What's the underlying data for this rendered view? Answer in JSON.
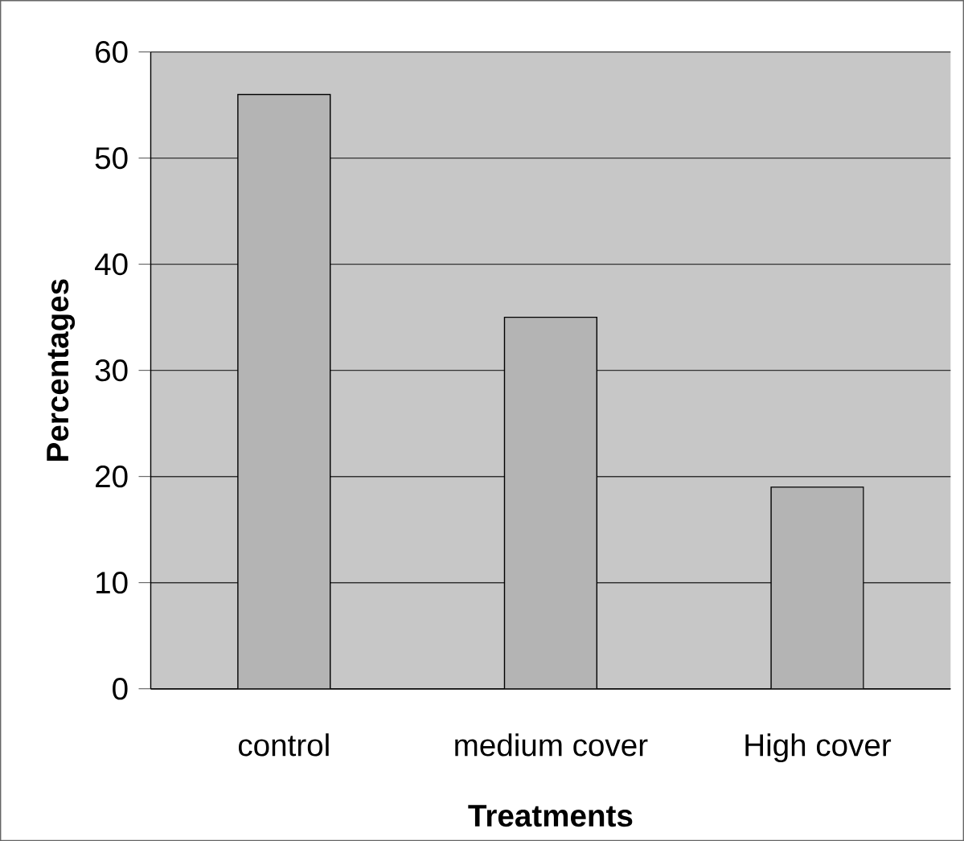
{
  "chart_data": {
    "type": "bar",
    "xlabel": "Treatments",
    "ylabel": "Percentages",
    "categories": [
      "control",
      "medium cover",
      "High cover"
    ],
    "values": [
      56,
      35,
      19
    ],
    "color": "#b4b4b4",
    "ylim": [
      0,
      60
    ],
    "yticks": [
      0,
      10,
      20,
      30,
      40,
      50,
      60
    ],
    "grid": "y"
  }
}
